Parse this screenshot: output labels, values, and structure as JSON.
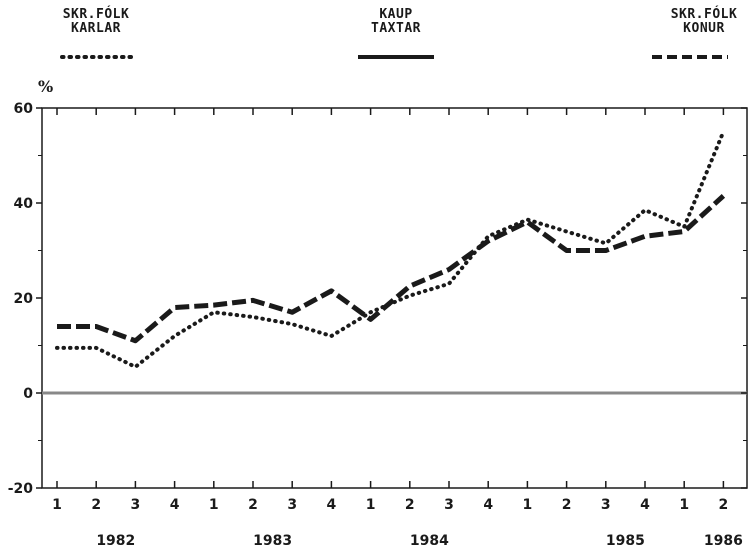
{
  "chart_data": {
    "type": "line",
    "ylabel": "%",
    "ylim": [
      -20,
      60
    ],
    "yticks": [
      60,
      40,
      20,
      0,
      -20
    ],
    "grid": false,
    "legend_position": "top",
    "x_quarters": [
      "1",
      "2",
      "3",
      "4",
      "1",
      "2",
      "3",
      "4",
      "1",
      "2",
      "3",
      "4",
      "1",
      "2",
      "3",
      "4",
      "1",
      "2"
    ],
    "x_years": [
      {
        "label": "1982",
        "index": 1.5
      },
      {
        "label": "1983",
        "index": 5.5
      },
      {
        "label": "1984",
        "index": 9.5
      },
      {
        "label": "1985",
        "index": 14.5
      },
      {
        "label": "1986",
        "index": 17
      }
    ],
    "series": [
      {
        "name": "SKR.FÓLK KARLAR",
        "style": "dotted",
        "values": [
          9.5,
          9.5,
          5.5,
          12,
          17,
          16,
          14.5,
          12,
          17,
          20.5,
          23,
          33,
          36.5,
          34,
          31.5,
          38.5,
          35,
          55
        ]
      },
      {
        "name": "KAUP TAXTAR",
        "style": "solid",
        "values": []
      },
      {
        "name": "SKR.FÓLK KONUR",
        "style": "dashed",
        "values": [
          14,
          14,
          11,
          18,
          18.5,
          19.5,
          17,
          21.5,
          15.5,
          22.5,
          26,
          32,
          36,
          30,
          30,
          33,
          34,
          41.5
        ]
      }
    ],
    "colors": {
      "ink": "#1a1a1a",
      "zero_line": "#888888"
    },
    "legend": [
      {
        "line1": "SKR.FÓLK",
        "line2": "KARLAR",
        "style": "dotted"
      },
      {
        "line1": "KAUP",
        "line2": "TAXTAR",
        "style": "solid"
      },
      {
        "line1": "SKR.FÓLK",
        "line2": "KONUR",
        "style": "dashed"
      }
    ]
  }
}
